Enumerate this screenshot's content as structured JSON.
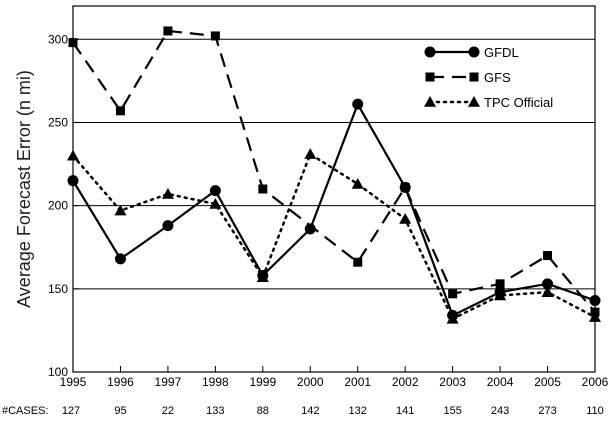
{
  "chart_data": {
    "type": "line",
    "title": "",
    "xlabel": "",
    "ylabel": "Average Forecast Error (n mi)",
    "x": [
      "1995",
      "1996",
      "1997",
      "1998",
      "1999",
      "2000",
      "2001",
      "2002",
      "2003",
      "2004",
      "2005",
      "2006"
    ],
    "ylim": [
      100,
      320
    ],
    "yticks": [
      100,
      150,
      200,
      250,
      300
    ],
    "grid": true,
    "legend_position": "top-right",
    "series": [
      {
        "name": "GFDL",
        "style": "solid",
        "marker": "circle",
        "color": "#000000",
        "values": [
          215,
          168,
          188,
          209,
          158,
          186,
          261,
          211,
          134,
          148,
          153,
          143
        ]
      },
      {
        "name": "GFS",
        "style": "dashed",
        "marker": "square",
        "color": "#000000",
        "values": [
          298,
          257,
          305,
          302,
          210,
          null,
          166,
          211,
          147,
          153,
          170,
          136
        ]
      },
      {
        "name": "TPC Official",
        "style": "dotted",
        "marker": "triangle",
        "color": "#000000",
        "values": [
          230,
          197,
          207,
          201,
          157,
          231,
          213,
          192,
          132,
          146,
          148,
          133
        ]
      }
    ],
    "cases_label": "#CASES:",
    "cases": [
      "127",
      "95",
      "22",
      "133",
      "88",
      "142",
      "132",
      "141",
      "155",
      "243",
      "273",
      "110"
    ]
  }
}
